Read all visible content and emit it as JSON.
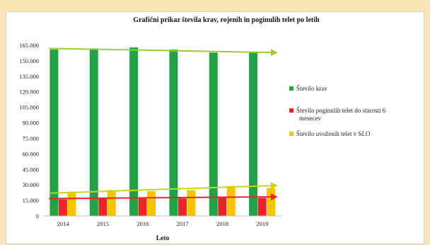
{
  "chart_data": {
    "type": "bar",
    "title": "Grafični prikaz števila krav, rojenih in poginulih telet po letih",
    "xlabel": "Leto",
    "ylabel": "",
    "categories": [
      "2014",
      "2015",
      "2016",
      "2017",
      "2018",
      "2019"
    ],
    "ylim": [
      0,
      165000
    ],
    "yticks": [
      0,
      15000,
      30000,
      45000,
      60000,
      75000,
      90000,
      105000,
      120000,
      135000,
      150000,
      165000
    ],
    "ytick_labels": [
      "0",
      "15.000",
      "30.000",
      "45.000",
      "60.000",
      "75.000",
      "90.000",
      "105.000",
      "120.000",
      "135.000",
      "150.000",
      "165.000"
    ],
    "grid": false,
    "legend_position": "right",
    "series": [
      {
        "name": "Število krav",
        "color": "#22a147",
        "values": [
          161000,
          162000,
          163000,
          161000,
          158000,
          159000
        ]
      },
      {
        "name": "Število poginulih telet do starosti  6 mesecev",
        "color": "#e8262a",
        "values": [
          16000,
          17000,
          17500,
          17000,
          17500,
          17500
        ]
      },
      {
        "name": "Število uvoženih telet v SLO",
        "color": "#f5c400",
        "values": [
          23000,
          25000,
          24000,
          25000,
          29000,
          27000
        ]
      }
    ],
    "trendlines": [
      {
        "series": "Število krav",
        "color": "#9acd32",
        "start": 162000,
        "end": 158000
      },
      {
        "series": "Število poginulih telet do starosti  6 mesecev",
        "color": "#e8262a",
        "start": 16800,
        "end": 18500
      },
      {
        "series": "Število uvoženih telet v SLO",
        "color": "#c6d61e",
        "start": 22000,
        "end": 29500
      }
    ]
  }
}
